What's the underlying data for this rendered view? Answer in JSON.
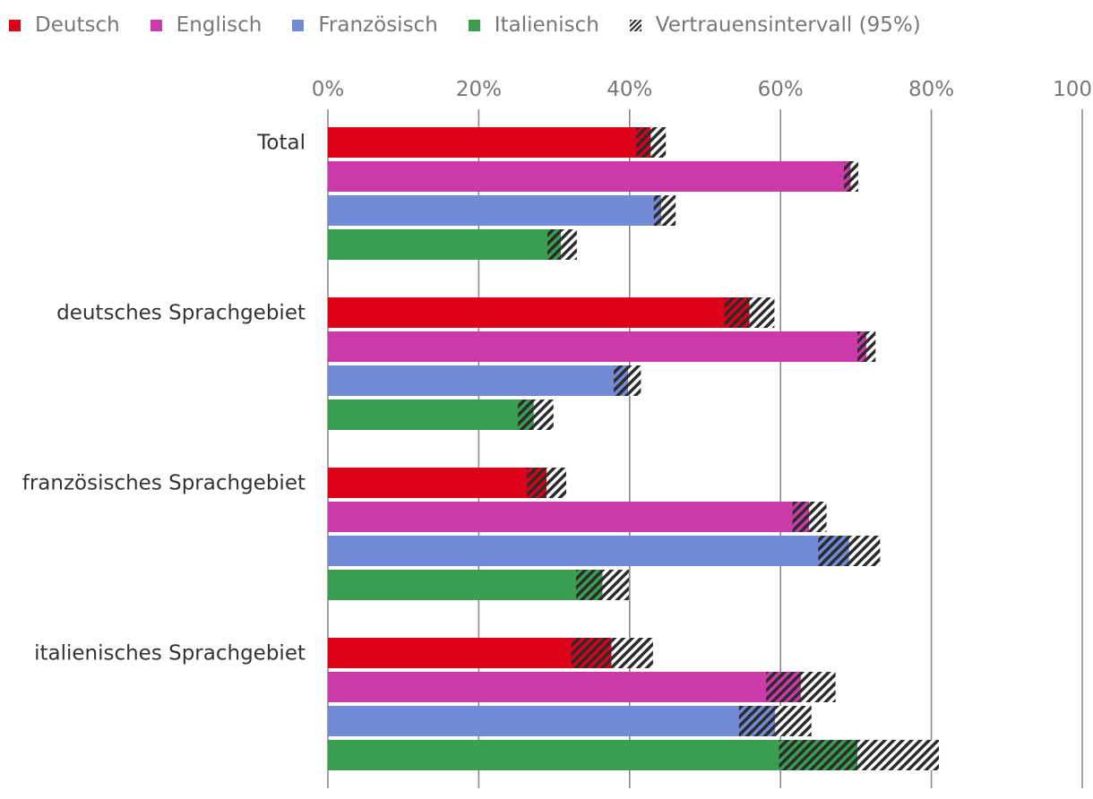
{
  "chart_data": {
    "type": "bar",
    "orientation": "horizontal",
    "categories": [
      "Total",
      "deutsches Sprachgebiet",
      "französisches Sprachgebiet",
      "italienisches Sprachgebiet"
    ],
    "series": [
      {
        "name": "Deutsch",
        "color": "#dc0018",
        "values": [
          42.8,
          55.9,
          29.0,
          37.6
        ],
        "ci_low": [
          40.9,
          52.6,
          26.4,
          32.3
        ],
        "ci_high": [
          44.8,
          59.2,
          31.6,
          43.1
        ]
      },
      {
        "name": "Englisch",
        "color": "#cc3aaa",
        "values": [
          69.3,
          71.4,
          63.8,
          62.7
        ],
        "ci_low": [
          68.4,
          70.2,
          61.6,
          58.1
        ],
        "ci_high": [
          70.3,
          72.6,
          66.1,
          67.3
        ]
      },
      {
        "name": "Französisch",
        "color": "#738bd6",
        "values": [
          44.2,
          39.8,
          69.1,
          59.3
        ],
        "ci_low": [
          43.2,
          37.9,
          65.0,
          54.5
        ],
        "ci_high": [
          46.1,
          41.5,
          73.2,
          64.1
        ]
      },
      {
        "name": "Italienisch",
        "color": "#3a9e50",
        "values": [
          30.9,
          27.3,
          36.4,
          70.2
        ],
        "ci_low": [
          29.1,
          25.2,
          32.9,
          59.8
        ],
        "ci_high": [
          33.0,
          29.9,
          39.9,
          81.0
        ]
      }
    ],
    "legend": {
      "ci_label": "Vertrauensintervall (95%)",
      "placement": "top-left"
    },
    "xlim": [
      0,
      100
    ],
    "xticks": [
      "0%",
      "20%",
      "40%",
      "60%",
      "80%",
      "100%"
    ],
    "grid": true,
    "title": "",
    "xlabel": "",
    "ylabel": ""
  }
}
